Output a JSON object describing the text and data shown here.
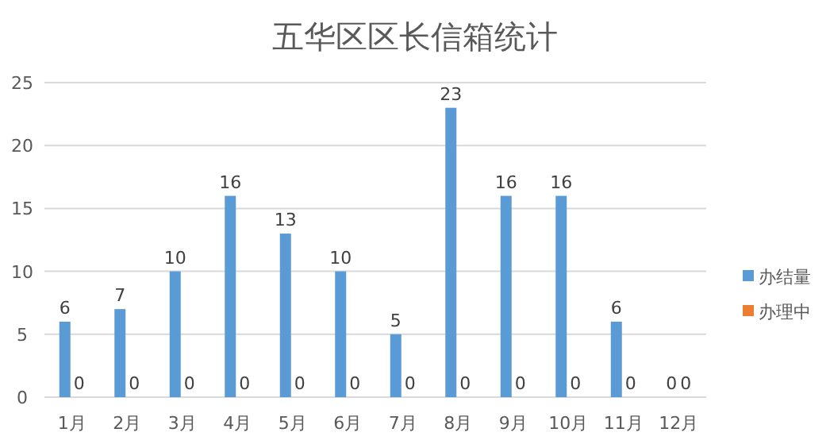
{
  "chart_data": {
    "type": "bar",
    "title": "五华区区长信箱统计",
    "categories": [
      "1月",
      "2月",
      "3月",
      "4月",
      "5月",
      "6月",
      "7月",
      "8月",
      "9月",
      "10月",
      "11月",
      "12月"
    ],
    "series": [
      {
        "name": "办结量",
        "color": "#5b9bd5",
        "values": [
          6,
          7,
          10,
          16,
          13,
          10,
          5,
          23,
          16,
          16,
          6,
          0
        ]
      },
      {
        "name": "办理中",
        "color": "#ed7d31",
        "values": [
          0,
          0,
          0,
          0,
          0,
          0,
          0,
          0,
          0,
          0,
          0,
          0
        ]
      }
    ],
    "ylim": [
      0,
      25
    ],
    "yticks": [
      0,
      5,
      10,
      15,
      20,
      25
    ],
    "grid": "y",
    "legend": "right",
    "data_labels": true
  }
}
